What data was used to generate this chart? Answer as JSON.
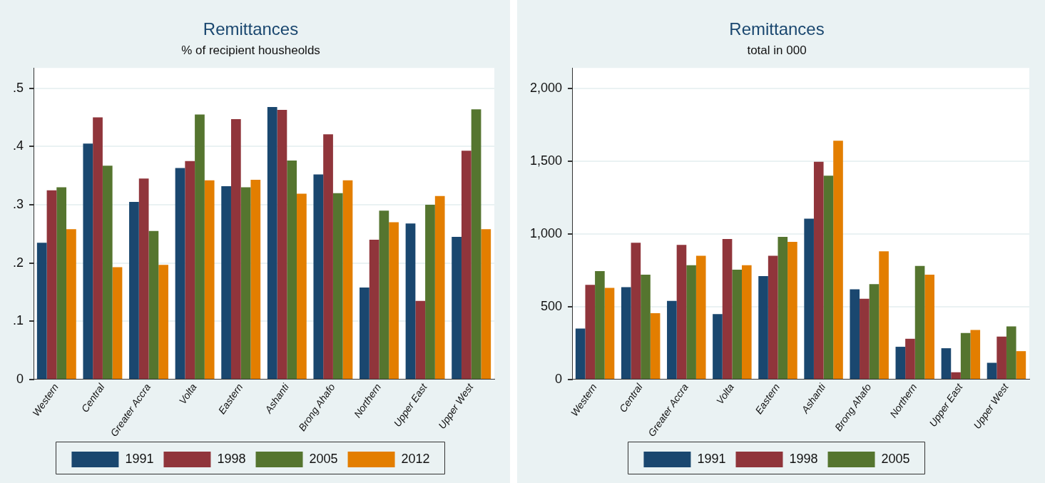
{
  "chart_data": [
    {
      "type": "bar",
      "title": "Remittances",
      "subtitle": "% of recipient housheolds",
      "categories": [
        "Western",
        "Central",
        "Greater Accra",
        "Volta",
        "Eastern",
        "Ashanti",
        "Brong Ahafo",
        "Northern",
        "Upper East",
        "Upper West"
      ],
      "series": [
        {
          "name": "1991",
          "color": "#1a476f",
          "values": [
            0.235,
            0.405,
            0.305,
            0.363,
            0.332,
            0.468,
            0.352,
            0.158,
            0.268,
            0.245
          ]
        },
        {
          "name": "1998",
          "color": "#90353b",
          "values": [
            0.325,
            0.45,
            0.345,
            0.375,
            0.447,
            0.463,
            0.421,
            0.24,
            0.135,
            0.393
          ]
        },
        {
          "name": "2005",
          "color": "#55752f",
          "values": [
            0.33,
            0.367,
            0.255,
            0.455,
            0.33,
            0.376,
            0.32,
            0.29,
            0.3,
            0.464
          ]
        },
        {
          "name": "2012",
          "color": "#e37e00",
          "values": [
            0.258,
            0.193,
            0.197,
            0.342,
            0.343,
            0.319,
            0.342,
            0.27,
            0.315,
            0.258
          ]
        }
      ],
      "ylim": [
        0,
        0.535
      ],
      "yticks": [
        {
          "value": 0,
          "label": "0"
        },
        {
          "value": 0.1,
          "label": ".1"
        },
        {
          "value": 0.2,
          "label": ".2"
        },
        {
          "value": 0.3,
          "label": ".3"
        },
        {
          "value": 0.4,
          "label": ".4"
        },
        {
          "value": 0.5,
          "label": ".5"
        }
      ],
      "grid": "y",
      "legend": "bottom"
    },
    {
      "type": "bar",
      "title": "Remittances",
      "subtitle": "total in 000",
      "categories": [
        "Western",
        "Central",
        "Greater Accra",
        "Volta",
        "Eastern",
        "Ashanti",
        "Brong Ahafo",
        "Northern",
        "Upper East",
        "Upper West"
      ],
      "series": [
        {
          "name": "1991",
          "color": "#1a476f",
          "values": [
            350,
            635,
            540,
            450,
            710,
            1105,
            620,
            225,
            215,
            115
          ]
        },
        {
          "name": "1998",
          "color": "#90353b",
          "values": [
            650,
            940,
            925,
            965,
            850,
            1495,
            555,
            280,
            50,
            295
          ]
        },
        {
          "name": "2005",
          "color": "#55752f",
          "values": [
            745,
            720,
            785,
            755,
            980,
            1400,
            655,
            780,
            320,
            365
          ]
        },
        {
          "color": "#e37e00",
          "values": [
            630,
            455,
            850,
            785,
            945,
            1640,
            880,
            720,
            340,
            195
          ]
        }
      ],
      "ylim": [
        0,
        2140
      ],
      "yticks": [
        {
          "value": 0,
          "label": "0"
        },
        500,
        {
          "value": 1000,
          "label": "1,000"
        },
        {
          "value": 1500,
          "label": "1,500"
        },
        {
          "value": 2000,
          "label": "2,000"
        }
      ],
      "grid": "y",
      "legend": "bottom"
    }
  ]
}
